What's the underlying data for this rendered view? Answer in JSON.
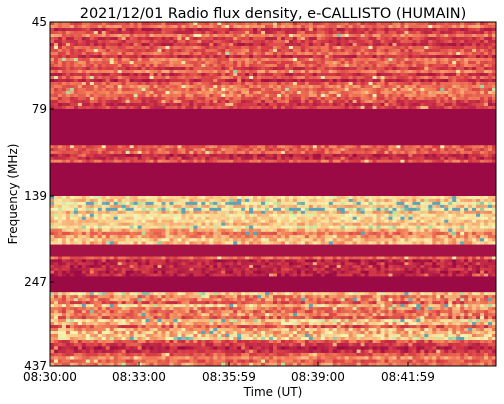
{
  "chart_data": {
    "type": "heatmap",
    "title": "2021/12/01  Radio flux density, e-CALLISTO (HUMAIN)",
    "xlabel": "Time (UT)",
    "ylabel": "Frequency (MHz)",
    "x_ticks": [
      "08:30:00",
      "08:33:00",
      "08:35:59",
      "08:39:00",
      "08:41:59"
    ],
    "y_ticks": [
      "45",
      "79",
      "139",
      "247",
      "437"
    ],
    "x_range": [
      "08:30:00",
      "08:44:59"
    ],
    "y_range": [
      45,
      437
    ],
    "y_axis": "frequency increasing downward",
    "colormap": "Spectral (dark red = low flux, yellow/cream = elevated, green/blue = high)",
    "colors": {
      "background_low": "#9b0a45",
      "mid": "#d9463f",
      "high": "#f7d98a",
      "peak": "#c8e59d",
      "extreme": "#5fa6b8"
    },
    "bands": [
      {
        "freq_from": 45,
        "freq_to": 79,
        "level": 0.35,
        "texture": "noisy"
      },
      {
        "freq_from": 79,
        "freq_to": 104,
        "level": 0.0,
        "texture": "flat"
      },
      {
        "freq_from": 104,
        "freq_to": 116,
        "level": 0.3,
        "texture": "noisy"
      },
      {
        "freq_from": 116,
        "freq_to": 139,
        "level": 0.0,
        "texture": "flat"
      },
      {
        "freq_from": 139,
        "freq_to": 180,
        "level": 0.8,
        "texture": "bright"
      },
      {
        "freq_from": 180,
        "freq_to": 200,
        "level": 0.6,
        "texture": "noisy"
      },
      {
        "freq_from": 200,
        "freq_to": 215,
        "level": 0.05,
        "texture": "flat"
      },
      {
        "freq_from": 215,
        "freq_to": 240,
        "level": 0.3,
        "texture": "noisy"
      },
      {
        "freq_from": 240,
        "freq_to": 270,
        "level": 0.0,
        "texture": "flat"
      },
      {
        "freq_from": 270,
        "freq_to": 385,
        "level": 0.6,
        "texture": "bright-noisy"
      },
      {
        "freq_from": 385,
        "freq_to": 415,
        "level": 0.3,
        "texture": "noisy"
      },
      {
        "freq_from": 415,
        "freq_to": 437,
        "level": 0.5,
        "texture": "noisy"
      }
    ]
  }
}
